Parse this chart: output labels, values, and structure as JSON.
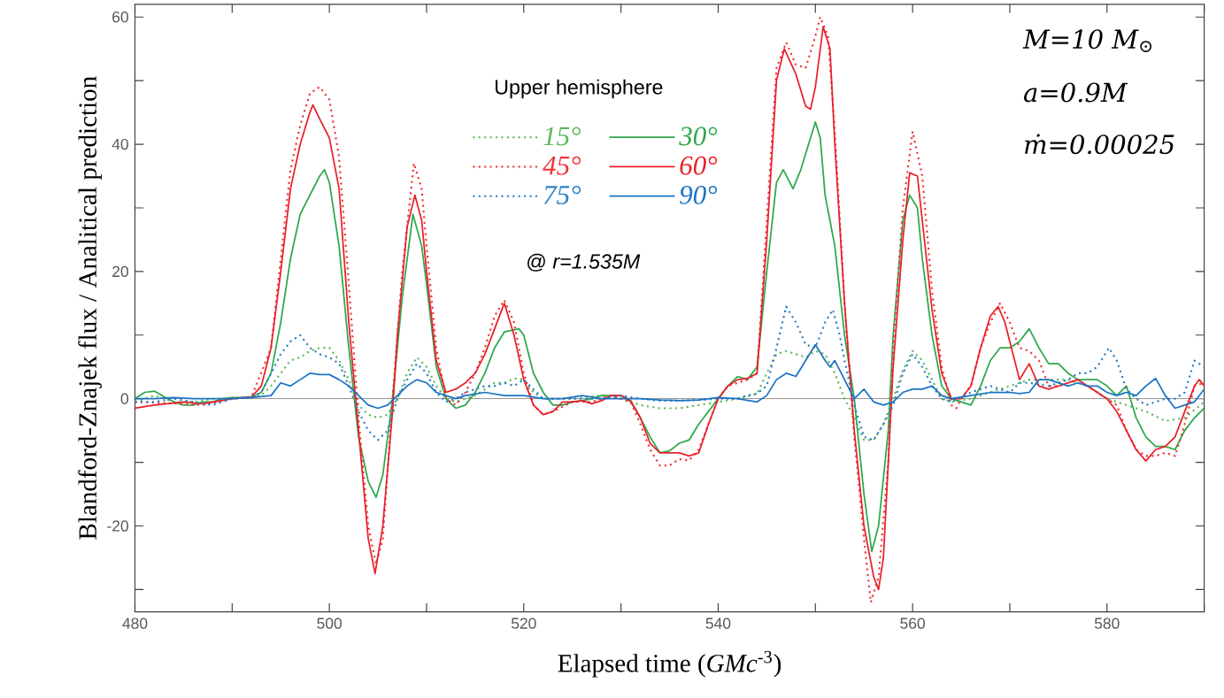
{
  "chart_data": {
    "type": "line",
    "xlabel": "Elapsed time (*GMc*$^{-3}$)",
    "ylabel": "Blandford-Znajek flux / Analitical prediction",
    "legend_title": "Upper hemisphere",
    "legend": "top",
    "xlim": [
      480,
      590
    ],
    "ylim": [
      -33.5,
      62
    ],
    "xticks": [
      480,
      {
        "value": 490,
        "label": null
      },
      500,
      {
        "value": 510,
        "label": null
      },
      520,
      {
        "value": 530,
        "label": null
      },
      540,
      {
        "value": 550,
        "label": null
      },
      560,
      {
        "value": 570,
        "label": null
      },
      580,
      {
        "value": 590,
        "label": null
      }
    ],
    "yticks": [
      {
        "value": -30,
        "label": null
      },
      -20,
      {
        "value": -10,
        "label": null
      },
      0,
      {
        "value": 10,
        "label": null
      },
      20,
      {
        "value": 30,
        "label": null
      },
      40,
      {
        "value": 50,
        "label": null
      },
      60
    ],
    "ref_lines": [
      {
        "axis": "y",
        "value": 0,
        "color": "#9a9a9a"
      }
    ],
    "annotations": [
      "M=10 M$_{⊙}$",
      "a=0.9M",
      "ṁ=0.00025",
      "@ *r=1.535M*"
    ],
    "series": [
      {
        "name": "15°",
        "color": "#5cb85a",
        "line_style": "dotted",
        "x": [
          480,
          482,
          484,
          486,
          488,
          490,
          492,
          493,
          494,
          495,
          496,
          497,
          498,
          499,
          500,
          501,
          502,
          503,
          504,
          505,
          506,
          507,
          508,
          509,
          510,
          511,
          512,
          513,
          515,
          516,
          517,
          518,
          519,
          520,
          521,
          522,
          525,
          528,
          530,
          532,
          534,
          536,
          538,
          540,
          542,
          544,
          545,
          546,
          547,
          548,
          549,
          550,
          551,
          552,
          553,
          554,
          555,
          556,
          557,
          558,
          559,
          560,
          561,
          562,
          563,
          564,
          566,
          568,
          570,
          572,
          574,
          576,
          578,
          580,
          582,
          584,
          586,
          588,
          590
        ],
        "values": [
          -0.5,
          0.5,
          -0.5,
          -0.5,
          0,
          0,
          0.2,
          0.5,
          2,
          4,
          6,
          6.5,
          7.5,
          8,
          8,
          6,
          3,
          -1,
          -2.5,
          -3,
          -2.5,
          0,
          4,
          6.5,
          5,
          2,
          0,
          -0.5,
          0.5,
          1.5,
          2.5,
          2.5,
          3.2,
          3,
          1,
          0,
          0,
          0.5,
          0,
          -1,
          -1.5,
          -1.5,
          -1,
          -0.5,
          0,
          0.8,
          4,
          7,
          7.5,
          7,
          6.5,
          7.5,
          7,
          4,
          0,
          -3,
          -6.5,
          -6.5,
          -4,
          0,
          4.5,
          7.5,
          6,
          3,
          0,
          -0.5,
          0,
          1,
          2,
          3,
          3,
          3,
          2,
          0,
          -1,
          -2,
          -3.5,
          -3,
          -0.5
        ]
      },
      {
        "name": "30°",
        "color": "#2ea84a",
        "line_style": "solid",
        "x": [
          480,
          481,
          482,
          483,
          484,
          485,
          486,
          487,
          488,
          489,
          490,
          492,
          493,
          494,
          495,
          496,
          497,
          498,
          499,
          499.5,
          500,
          501,
          502,
          503,
          504,
          504.8,
          505.5,
          506.5,
          507.5,
          508.6,
          509.5,
          510,
          511,
          512,
          513,
          514,
          515,
          516,
          517,
          518,
          519.5,
          520,
          521,
          522,
          523,
          524,
          525,
          526,
          527,
          528,
          529,
          530,
          531,
          532,
          533,
          534,
          535,
          536,
          537,
          538,
          539,
          540,
          541,
          542,
          543,
          544,
          545,
          546,
          546.7,
          547.7,
          548.5,
          550,
          550.5,
          551,
          552,
          553,
          554,
          555,
          555.8,
          556.5,
          557.5,
          558,
          559,
          559.7,
          560.5,
          561,
          562,
          563,
          564,
          565,
          566,
          567,
          568,
          569,
          570,
          571,
          572,
          573,
          574,
          575,
          576,
          577,
          578,
          579,
          580,
          581,
          582,
          583,
          584,
          585,
          586,
          587,
          588,
          589,
          590
        ],
        "values": [
          0,
          1,
          1.2,
          0.3,
          -0.5,
          -1,
          -1,
          -0.5,
          -0.5,
          0,
          0.2,
          0.2,
          1,
          4,
          12,
          22,
          29,
          32,
          35,
          36,
          34,
          24,
          8,
          -6,
          -13,
          -15.5,
          -12,
          0,
          16,
          29,
          24,
          18,
          5,
          0,
          -1.5,
          -1,
          1,
          4,
          8,
          10.5,
          11,
          10,
          4,
          1,
          -1,
          -1,
          -0.5,
          -0.3,
          0,
          0.5,
          0.5,
          0.5,
          -0.5,
          -3,
          -6,
          -8.5,
          -8.2,
          -7,
          -6.5,
          -4,
          -2,
          0,
          2,
          3.5,
          3,
          5,
          20,
          34,
          36,
          33,
          36,
          43.5,
          41,
          32,
          24,
          10,
          0,
          -15,
          -24,
          -20,
          -5,
          10,
          28,
          32,
          30,
          22,
          10,
          2,
          0,
          -0.5,
          -1,
          2,
          6,
          8,
          8,
          9,
          11,
          8,
          5.5,
          5.5,
          4,
          3,
          3,
          3,
          2,
          0.5,
          2,
          -3,
          -6,
          -7.5,
          -7.5,
          -8,
          -5,
          -3,
          -1.5
        ]
      },
      {
        "name": "45°",
        "color": "#ee3338",
        "line_style": "dotted",
        "x": [
          480,
          485,
          487,
          490,
          492,
          494,
          495,
          496,
          497,
          498,
          499,
          500,
          501,
          502,
          503,
          504,
          504.8,
          505.5,
          506.5,
          507.5,
          508.7,
          509.5,
          510,
          511,
          512,
          513,
          514,
          515,
          516,
          517,
          518,
          519,
          520,
          521,
          522,
          523,
          525,
          527,
          529,
          531,
          532,
          533,
          534,
          535,
          536,
          537,
          538,
          539,
          540,
          541,
          542,
          543,
          544,
          545,
          546,
          547,
          548,
          549,
          550,
          550.5,
          551.3,
          552,
          553,
          554,
          555,
          555.7,
          556.5,
          557.5,
          558,
          559,
          560,
          561,
          562,
          563,
          564,
          564.5,
          565,
          566,
          567,
          568,
          569,
          570,
          571,
          572,
          573,
          574,
          575,
          576,
          577,
          578,
          579,
          580,
          581,
          582,
          583,
          584,
          585,
          586,
          587,
          588,
          589,
          590
        ],
        "values": [
          -0.5,
          -0.8,
          -1,
          0,
          0.3,
          8,
          22,
          36,
          43,
          48,
          49,
          47,
          38,
          18,
          -3,
          -20,
          -26,
          -22,
          0,
          20,
          37,
          33,
          24,
          8,
          0,
          -1,
          1,
          4,
          8,
          13,
          15.5,
          12,
          4,
          -1,
          -2.5,
          -2,
          -0.5,
          -0.5,
          0.5,
          -0.5,
          -4,
          -8,
          -10.5,
          -10.5,
          -9.5,
          -9.7,
          -8,
          -4,
          0,
          2,
          2.5,
          3,
          4,
          28,
          52,
          56,
          52.5,
          52,
          57,
          60,
          57,
          42,
          15,
          -6,
          -22,
          -32,
          -28,
          -10,
          8,
          30,
          42,
          35,
          17,
          5,
          -1,
          -1.5,
          0,
          2,
          8,
          12,
          15,
          12,
          8,
          7.5,
          6,
          2,
          2,
          2.5,
          3,
          2,
          1,
          0,
          -1,
          -5,
          -8,
          -9,
          -9,
          -8.5,
          -9,
          -4,
          2,
          2.5
        ]
      },
      {
        "name": "60°",
        "color": "#e8212b",
        "line_style": "solid",
        "x": [
          480,
          482,
          485,
          487,
          490,
          492,
          493,
          494,
          495,
          496,
          497,
          498,
          498.3,
          499,
          500,
          501,
          502,
          503,
          504,
          504.7,
          505.5,
          506.5,
          507,
          508,
          508.8,
          509.5,
          510,
          511,
          512,
          513,
          514,
          515,
          516,
          517,
          518,
          519,
          520,
          521,
          522,
          523,
          524,
          525,
          526,
          527,
          528,
          529,
          530,
          531,
          532,
          533,
          534,
          535,
          536,
          537,
          538,
          539,
          540,
          541,
          542,
          543,
          544,
          545,
          546,
          546.8,
          548,
          549,
          549.5,
          550,
          550.8,
          551.5,
          552,
          553,
          554,
          555,
          556,
          556.5,
          557,
          557.5,
          558,
          559,
          559.7,
          560.5,
          561,
          562,
          563,
          564,
          565,
          566,
          567,
          568,
          568.8,
          569.5,
          570,
          571,
          572,
          573,
          574,
          575,
          576,
          577,
          578,
          579,
          580,
          581,
          582,
          583,
          584,
          585,
          586,
          587,
          588,
          589,
          589.5,
          590
        ],
        "values": [
          -1.5,
          -1,
          -0.5,
          -0.8,
          0,
          0.3,
          2,
          8,
          20,
          33,
          40,
          45,
          46.2,
          44,
          41,
          33,
          12,
          -5,
          -22,
          -27.5,
          -20,
          -2,
          10,
          27,
          32,
          28,
          20,
          6,
          1,
          1.5,
          2.5,
          4,
          7,
          11,
          15,
          10,
          3,
          -1,
          -2.5,
          -2,
          -0.5,
          -0.5,
          -0.3,
          -0.8,
          -0.3,
          0.5,
          0.5,
          -0.3,
          -3,
          -7,
          -8.5,
          -8.5,
          -8.5,
          -9,
          -8.5,
          -4,
          0,
          2,
          3,
          3.2,
          4,
          25,
          50,
          55,
          51,
          46,
          45.5,
          49,
          58.5,
          55,
          40,
          15,
          -5,
          -20,
          -28,
          -30,
          -25,
          -10,
          5,
          25,
          35.5,
          35,
          28,
          14,
          4,
          0,
          0,
          2,
          8,
          13,
          14.5,
          12,
          9,
          3,
          5.5,
          2,
          1.5,
          2,
          2.5,
          3,
          2,
          1,
          0,
          -2,
          -5,
          -8,
          -9.8,
          -8,
          -7.5,
          -6,
          -2,
          2,
          3,
          2
        ]
      },
      {
        "name": "75°",
        "color": "#2b7fc6",
        "line_style": "dotted",
        "x": [
          480,
          482,
          484,
          486,
          488,
          490,
          492,
          493,
          494,
          495,
          496,
          497,
          498,
          499,
          500,
          501,
          502,
          503,
          504,
          505,
          506,
          507,
          508,
          509,
          510,
          511,
          512,
          513,
          514,
          515,
          516,
          517,
          518,
          519,
          520,
          521,
          522,
          524,
          526,
          528,
          530,
          532,
          534,
          536,
          538,
          540,
          542,
          543,
          544,
          545,
          546,
          547,
          548,
          549,
          550,
          551,
          551.8,
          552.5,
          553,
          554,
          555,
          556,
          557,
          558,
          559,
          560,
          561,
          562,
          563,
          564,
          566,
          568,
          570,
          571,
          572,
          574,
          575,
          576,
          577,
          578,
          579,
          580.2,
          581,
          582,
          583,
          584,
          585,
          586,
          587,
          588,
          589,
          590
        ],
        "values": [
          -0.5,
          -0.5,
          0,
          -0.5,
          -1,
          0,
          0.3,
          1,
          4,
          7,
          9,
          10,
          8,
          7,
          6.5,
          5.5,
          2,
          -2,
          -5,
          -6.5,
          -5,
          0,
          3,
          5.5,
          4,
          1,
          -0.5,
          0,
          1,
          1.5,
          2,
          2,
          2.5,
          2,
          3,
          1.5,
          0,
          0,
          0,
          0,
          0.5,
          0,
          -0.3,
          -0.3,
          -0.2,
          0,
          0,
          0.5,
          0.8,
          2,
          8,
          14.5,
          12,
          8.5,
          8,
          12,
          14,
          10,
          6,
          -1,
          -6,
          -6.5,
          -4,
          -1,
          4,
          7,
          5,
          2,
          0,
          -0.5,
          1,
          2,
          1,
          2.5,
          2.5,
          2,
          2.5,
          3,
          4,
          4,
          5,
          8,
          6,
          1.5,
          0,
          -1,
          -0.5,
          0,
          0,
          1,
          6,
          5
        ]
      },
      {
        "name": "90°",
        "color": "#1c74c4",
        "line_style": "solid",
        "x": [
          480,
          482,
          484,
          486,
          488,
          490,
          492,
          494,
          495,
          496,
          497,
          498,
          499,
          500,
          501,
          502,
          503,
          504,
          505,
          506,
          507,
          508,
          509,
          510,
          511,
          512,
          513,
          514,
          516,
          518,
          520,
          522,
          524,
          526,
          528,
          530,
          532,
          534,
          536,
          538,
          540,
          542,
          544,
          545,
          546,
          547,
          548,
          549,
          550,
          551,
          551.5,
          552,
          553,
          554,
          555,
          556,
          557,
          558,
          559,
          560,
          561,
          562,
          563,
          564,
          566,
          568,
          570,
          571,
          572,
          573,
          574,
          575,
          576,
          577,
          578,
          579,
          580,
          581,
          582,
          583,
          584,
          585,
          586,
          587,
          588,
          589,
          590
        ],
        "values": [
          0,
          0,
          0.2,
          0,
          0,
          0,
          0.2,
          0.5,
          2.5,
          2,
          3,
          4,
          3.8,
          3.8,
          3,
          2,
          0.5,
          -1,
          -1.5,
          -1,
          0.5,
          2,
          3,
          2.5,
          1,
          0.5,
          0,
          0.5,
          1,
          0.5,
          0.5,
          0,
          0,
          0.5,
          0,
          0,
          0,
          -0.2,
          -0.3,
          -0.2,
          0.2,
          0,
          -0.5,
          0.5,
          3,
          4,
          3.5,
          6,
          8.5,
          6,
          5,
          6,
          3,
          0,
          1.5,
          -0.5,
          -1,
          -0.5,
          1,
          1.5,
          1.5,
          2,
          0.5,
          0,
          0.5,
          1,
          1,
          0.8,
          1,
          3,
          3,
          2.5,
          2,
          2.5,
          2,
          2,
          1,
          0.5,
          1,
          0.5,
          2,
          3.2,
          0.5,
          -1.5,
          -1,
          -0.5,
          1.5
        ]
      }
    ]
  }
}
